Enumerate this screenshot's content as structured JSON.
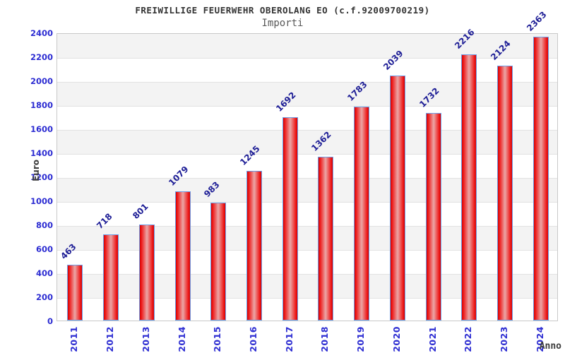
{
  "header": {
    "title": "FREIWILLIGE FEUERWEHR OBEROLANG EO (c.f.92009700219)",
    "subtitle": "Importi"
  },
  "chart_data": {
    "type": "bar",
    "title": "FREIWILLIGE FEUERWEHR OBEROLANG EO (c.f.92009700219)",
    "subtitle": "Importi",
    "xlabel": "Anno",
    "ylabel": "Euro",
    "categories": [
      "2011",
      "2012",
      "2013",
      "2014",
      "2015",
      "2016",
      "2017",
      "2018",
      "2019",
      "2020",
      "2021",
      "2022",
      "2023",
      "2024"
    ],
    "values": [
      463,
      718,
      801,
      1079,
      983,
      1245,
      1692,
      1362,
      1783,
      2039,
      1732,
      2216,
      2124,
      2363
    ],
    "ylim": [
      0,
      2400
    ],
    "y_ticks": [
      0,
      200,
      400,
      600,
      800,
      1000,
      1200,
      1400,
      1600,
      1800,
      2000,
      2200,
      2400
    ],
    "grid": "horizontal gridlines with alternating gray bands every 200",
    "legend": "none",
    "bar_value_labels_rotation_deg": -45,
    "x_tick_rotation_deg": -90
  },
  "colors": {
    "band_gray": "#f3f3f3",
    "gridline": "#e2e2e2",
    "plot_border": "#c9c9c9",
    "bar_edge": "#d40000",
    "bar_bright": "#ee1c1c",
    "bar_mid": "#eba6a6",
    "bar_border": "#6d9fe8",
    "tick_label": "#2d2dd2",
    "value_label": "#1e1e96",
    "title_text": "#333333",
    "subtitle_text": "#595959",
    "axis_title_text": "#3c3c3c"
  }
}
